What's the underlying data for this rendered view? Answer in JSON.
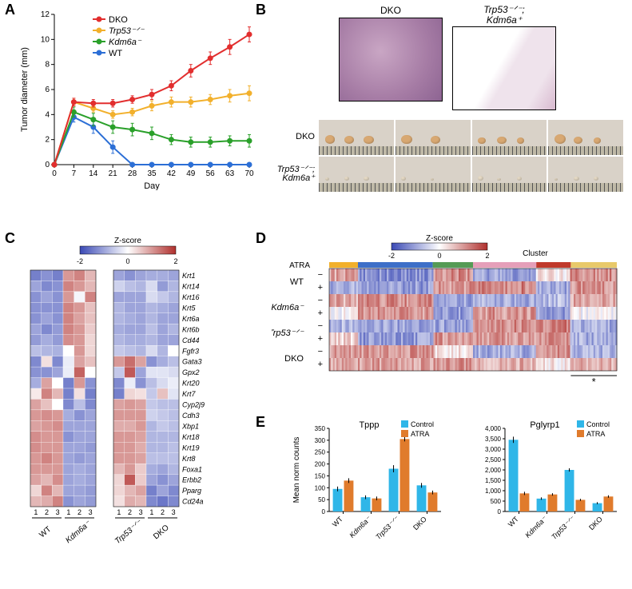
{
  "panelA": {
    "label": "A",
    "type": "line",
    "title": "",
    "xlabel": "Day",
    "ylabel": "Tumor diameter (mm)",
    "xlim": [
      0,
      70
    ],
    "ylim": [
      0,
      12
    ],
    "xticks": [
      0,
      7,
      14,
      21,
      28,
      35,
      42,
      49,
      56,
      63,
      70
    ],
    "yticks": [
      0,
      2,
      4,
      6,
      8,
      10,
      12
    ],
    "series": [
      {
        "name": "DKO",
        "color": "#e22e2e",
        "x": [
          0,
          7,
          14,
          21,
          28,
          35,
          42,
          49,
          56,
          63,
          70
        ],
        "y": [
          0,
          5.0,
          4.9,
          4.9,
          5.2,
          5.6,
          6.3,
          7.5,
          8.5,
          9.4,
          10.4
        ],
        "err": [
          0,
          0.3,
          0.3,
          0.3,
          0.3,
          0.4,
          0.4,
          0.5,
          0.5,
          0.6,
          0.6
        ]
      },
      {
        "name": "Trp53⁻ᐟ⁻",
        "color": "#f2b02c",
        "x": [
          0,
          7,
          14,
          21,
          28,
          35,
          42,
          49,
          56,
          63,
          70
        ],
        "y": [
          0,
          5.0,
          4.5,
          4.0,
          4.2,
          4.7,
          5.0,
          5.0,
          5.2,
          5.5,
          5.7
        ],
        "err": [
          0,
          0.3,
          0.3,
          0.3,
          0.3,
          0.4,
          0.4,
          0.4,
          0.4,
          0.5,
          0.6
        ]
      },
      {
        "name": "Kdm6a⁻",
        "color": "#2aa02a",
        "x": [
          0,
          7,
          14,
          21,
          28,
          35,
          42,
          49,
          56,
          63,
          70
        ],
        "y": [
          0,
          4.2,
          3.6,
          3.0,
          2.8,
          2.5,
          2.0,
          1.8,
          1.8,
          1.9,
          1.9
        ],
        "err": [
          0,
          0.4,
          0.5,
          0.5,
          0.5,
          0.5,
          0.4,
          0.4,
          0.4,
          0.4,
          0.5
        ]
      },
      {
        "name": "WT",
        "color": "#2c6fd6",
        "x": [
          0,
          7,
          14,
          21,
          28,
          35,
          42,
          49,
          56,
          63,
          70
        ],
        "y": [
          0,
          3.8,
          3.0,
          1.4,
          0,
          0,
          0,
          0,
          0,
          0,
          0
        ],
        "err": [
          0,
          0.4,
          0.5,
          0.5,
          0,
          0,
          0,
          0,
          0,
          0,
          0
        ]
      }
    ],
    "marker_radius": 3.5,
    "line_width": 2,
    "label_fontsize": 11
  },
  "panelB": {
    "label": "B",
    "histology": {
      "left_label": "DKO",
      "right_label_line1": "Trp53⁻ᐟ⁻;",
      "right_label_line2": "Kdm6a⁺",
      "left_bg": "#c9a6c4",
      "right_bg": "#efe3ec",
      "border_color": "#000"
    },
    "tumors": {
      "rows": [
        "DKO",
        "Trp53⁻ᐟ⁻;\nKdm6a⁺"
      ],
      "row1_bg": "#d9d2c8",
      "row2_bg": "#d9d2c8",
      "tumor_color_top": "#d8a872",
      "tumor_color_bottom": "#e6dac5",
      "ruler_color": "#bfb9a7",
      "panel_count": 4
    }
  },
  "panelC": {
    "label": "C",
    "colorbar": {
      "label": "Z-score",
      "min": -2,
      "max": 2,
      "ticks": [
        -2,
        0,
        2
      ],
      "low": "#3a49b5",
      "mid": "#ffffff",
      "high": "#b0302d"
    },
    "genes": [
      "Krt1",
      "Krt14",
      "Krt16",
      "Krt5",
      "Krt6a",
      "Krt6b",
      "Cd44",
      "Fgfr3",
      "Gata3",
      "Gpx2",
      "Krt20",
      "Krt7",
      "Cyp2j9",
      "Cdh3",
      "Xbp1",
      "Krt18",
      "Krt19",
      "Krt8",
      "Foxa1",
      "Erbb2",
      "Pparg",
      "Cd24a"
    ],
    "groups_left": [
      "WT",
      "Kdm6a⁻"
    ],
    "groups_right": [
      "Trp53⁻ᐟ⁻",
      "DKO"
    ],
    "reps": [
      "1",
      "2",
      "3"
    ],
    "matrix_left": [
      [
        -1.4,
        -1.2,
        -1.4,
        1.0,
        1.2,
        0.7
      ],
      [
        -1.0,
        -1.3,
        -1.2,
        1.2,
        1.0,
        0.7
      ],
      [
        -1.2,
        -1.0,
        -1.2,
        1.0,
        -0.1,
        1.2
      ],
      [
        -1.2,
        -1.2,
        -1.2,
        1.2,
        1.0,
        0.6
      ],
      [
        -1.2,
        -1.0,
        -1.2,
        1.2,
        0.9,
        0.6
      ],
      [
        -1.0,
        -1.3,
        -1.1,
        1.2,
        1.0,
        0.5
      ],
      [
        -1.1,
        -0.9,
        -1.1,
        1.1,
        1.0,
        0.4
      ],
      [
        -0.7,
        -0.8,
        -0.85,
        0.0,
        1.0,
        0.4
      ],
      [
        -1.3,
        0.3,
        -1.3,
        -0.2,
        0.9,
        0.6
      ],
      [
        -1.2,
        -1.2,
        -1.0,
        -0.2,
        1.5,
        0.0
      ],
      [
        -0.9,
        0.9,
        0.0,
        -1.4,
        1.0,
        -1.2
      ],
      [
        0.2,
        1.2,
        0.7,
        -1.4,
        0.3,
        -1.4
      ],
      [
        0.9,
        0.6,
        0.0,
        -1.3,
        -0.7,
        -1.3
      ],
      [
        1.0,
        1.1,
        1.0,
        -0.9,
        -1.2,
        -1.0
      ],
      [
        0.9,
        1.0,
        1.1,
        -1.0,
        -1.0,
        -1.0
      ],
      [
        1.1,
        1.0,
        1.0,
        -1.2,
        -1.0,
        -1.0
      ],
      [
        1.1,
        1.0,
        1.0,
        -1.0,
        -1.0,
        -1.1
      ],
      [
        1.0,
        1.2,
        1.0,
        -1.0,
        -1.1,
        -1.0
      ],
      [
        1.0,
        1.0,
        1.0,
        -1.0,
        -0.9,
        -1.0
      ],
      [
        0.9,
        0.7,
        1.1,
        -1.0,
        -0.9,
        -1.0
      ],
      [
        0.4,
        1.2,
        0.7,
        -1.0,
        -1.0,
        -1.1
      ],
      [
        0.7,
        0.8,
        1.2,
        -1.2,
        -1.0,
        -1.1
      ]
    ],
    "matrix_right": [
      [
        -1.0,
        -1.2,
        -1.0,
        -0.9,
        -0.9,
        -1.0
      ],
      [
        -0.5,
        -0.7,
        -0.8,
        -0.4,
        -1.1,
        -0.8
      ],
      [
        -1.0,
        -1.0,
        -1.0,
        -0.4,
        -0.6,
        -0.8
      ],
      [
        -0.8,
        -1.0,
        -1.0,
        -0.8,
        -0.9,
        -1.0
      ],
      [
        -0.8,
        -0.9,
        -1.0,
        -0.8,
        -1.0,
        -1.0
      ],
      [
        -0.9,
        -1.0,
        -1.0,
        -0.7,
        -1.0,
        -0.8
      ],
      [
        -0.8,
        -0.9,
        -0.9,
        -0.8,
        -1.0,
        -1.0
      ],
      [
        -0.6,
        -0.7,
        -0.8,
        -0.4,
        -0.8,
        0.0
      ],
      [
        1.0,
        1.4,
        0.9,
        -1.2,
        -0.9,
        -0.7
      ],
      [
        -0.6,
        1.6,
        -1.0,
        -0.3,
        -0.3,
        -0.4
      ],
      [
        -1.3,
        -0.2,
        -1.2,
        -0.7,
        -0.4,
        -0.2
      ],
      [
        -1.4,
        0.4,
        0.3,
        -0.6,
        0.6,
        -0.3
      ],
      [
        0.9,
        1.0,
        0.9,
        -0.6,
        -0.7,
        -0.7
      ],
      [
        1.0,
        1.0,
        1.0,
        -0.5,
        -0.6,
        -0.7
      ],
      [
        0.8,
        0.8,
        1.0,
        -0.8,
        -0.6,
        -0.7
      ],
      [
        1.0,
        1.0,
        0.9,
        -0.8,
        -0.8,
        -0.8
      ],
      [
        1.0,
        1.0,
        0.8,
        -0.8,
        -0.8,
        -0.7
      ],
      [
        1.0,
        1.0,
        0.9,
        -0.7,
        -0.7,
        -0.7
      ],
      [
        0.7,
        1.0,
        0.5,
        -0.9,
        -1.0,
        -0.8
      ],
      [
        0.4,
        1.6,
        0.5,
        -1.0,
        -1.2,
        -1.0
      ],
      [
        0.4,
        0.7,
        0.9,
        -1.4,
        -1.0,
        -1.3
      ],
      [
        0.3,
        0.8,
        0.7,
        -1.3,
        -1.5,
        -1.3
      ]
    ]
  },
  "panelD": {
    "label": "D",
    "colorbar": {
      "label": "Z-score",
      "min": -2,
      "max": 2,
      "ticks": [
        -2,
        0,
        2
      ],
      "low": "#3a49b5",
      "mid": "#ffffff",
      "high": "#b0302d"
    },
    "cluster_label": "Cluster",
    "atra_label": "ATRA",
    "atra_states": [
      "−",
      "+"
    ],
    "row_groups": [
      "WT",
      "Kdm6a⁻",
      "Trp53⁻ᐟ⁻",
      "DKO"
    ],
    "cluster_colors": [
      "#f2b02c",
      "#3d6fc8",
      "#559b55",
      "#e59fb9",
      "#c0392b",
      "#e8c96a"
    ],
    "cluster_widths": [
      0.1,
      0.26,
      0.14,
      0.22,
      0.12,
      0.16
    ],
    "rows": 8,
    "cols": 160,
    "star": "*"
  },
  "panelE": {
    "label": "E",
    "legend": {
      "control": {
        "label": "Control",
        "color": "#2fb6e8"
      },
      "atra": {
        "label": "ATRA",
        "color": "#e07b2c"
      }
    },
    "charts": [
      {
        "title": "Tppp",
        "ylabel": "Mean norm counts",
        "ylim": [
          0,
          350
        ],
        "yticks": [
          0,
          50,
          100,
          150,
          200,
          250,
          300,
          350
        ],
        "groups": [
          "WT",
          "Kdm6a⁻",
          "Trp53⁻ᐟ⁻",
          "DKO"
        ],
        "control": [
          95,
          60,
          180,
          110
        ],
        "control_err": [
          10,
          8,
          15,
          10
        ],
        "atra": [
          130,
          55,
          305,
          80
        ],
        "atra_err": [
          10,
          8,
          10,
          8
        ]
      },
      {
        "title": "Pglyrp1",
        "ylabel": "Mean norm counts",
        "ylim": [
          0,
          4000
        ],
        "yticks": [
          0,
          500,
          1000,
          1500,
          2000,
          2500,
          3000,
          3500,
          4000
        ],
        "groups": [
          "WT",
          "Kdm6a⁻",
          "Trp53⁻ᐟ⁻",
          "DKO"
        ],
        "control": [
          3450,
          620,
          2000,
          400
        ],
        "control_err": [
          150,
          60,
          80,
          50
        ],
        "atra": [
          870,
          820,
          560,
          720
        ],
        "atra_err": [
          80,
          60,
          50,
          60
        ]
      }
    ]
  }
}
